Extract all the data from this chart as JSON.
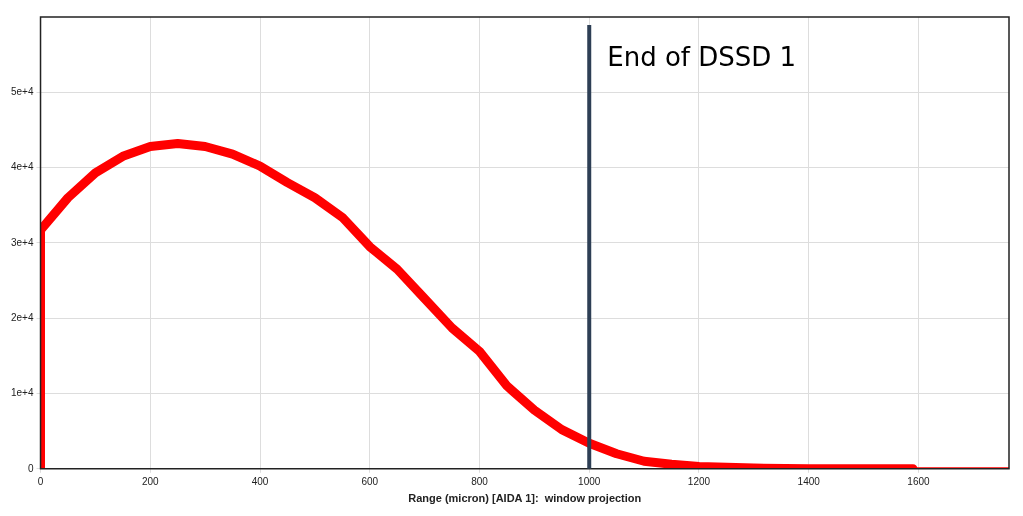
{
  "chart_data": {
    "type": "line",
    "xlabel": "Range (micron) [AIDA 1]:  window projection",
    "xlim": [
      0,
      1765
    ],
    "xticks": [
      0,
      200,
      400,
      600,
      800,
      1000,
      1200,
      1400,
      1600
    ],
    "ylim": [
      0,
      60000
    ],
    "yticks": [
      0,
      {
        "value": 10000,
        "label": "1e+4"
      },
      {
        "value": 20000,
        "label": "2e+4"
      },
      {
        "value": 30000,
        "label": "3e+4"
      },
      {
        "value": 40000,
        "label": "4e+4"
      },
      {
        "value": 50000,
        "label": "5e+4"
      }
    ],
    "grid": true,
    "marker": "none",
    "line_style": "solid",
    "series": [
      {
        "color": "#ff0000",
        "x": [
          0,
          0,
          50,
          100,
          150,
          200,
          250,
          300,
          350,
          400,
          450,
          500,
          550,
          600,
          650,
          700,
          750,
          800,
          850,
          900,
          950,
          1000,
          1050,
          1100,
          1150,
          1200,
          1300,
          1400,
          1500,
          1590
        ],
        "values": [
          0,
          31700,
          36000,
          39300,
          41500,
          42800,
          43200,
          42800,
          41800,
          40200,
          38000,
          36000,
          33400,
          29500,
          26500,
          22600,
          18700,
          15600,
          11000,
          7800,
          5200,
          3400,
          2000,
          1000,
          600,
          300,
          100,
          0,
          0,
          0
        ]
      },
      {
        "color": "#ff0000",
        "x": [
          1590,
          1765
        ],
        "values": [
          0,
          0
        ]
      }
    ],
    "ref_lines": [
      {
        "axis": "x",
        "value": 1000,
        "label": "End of DSSD 1",
        "color": "#2e3f55"
      }
    ]
  }
}
